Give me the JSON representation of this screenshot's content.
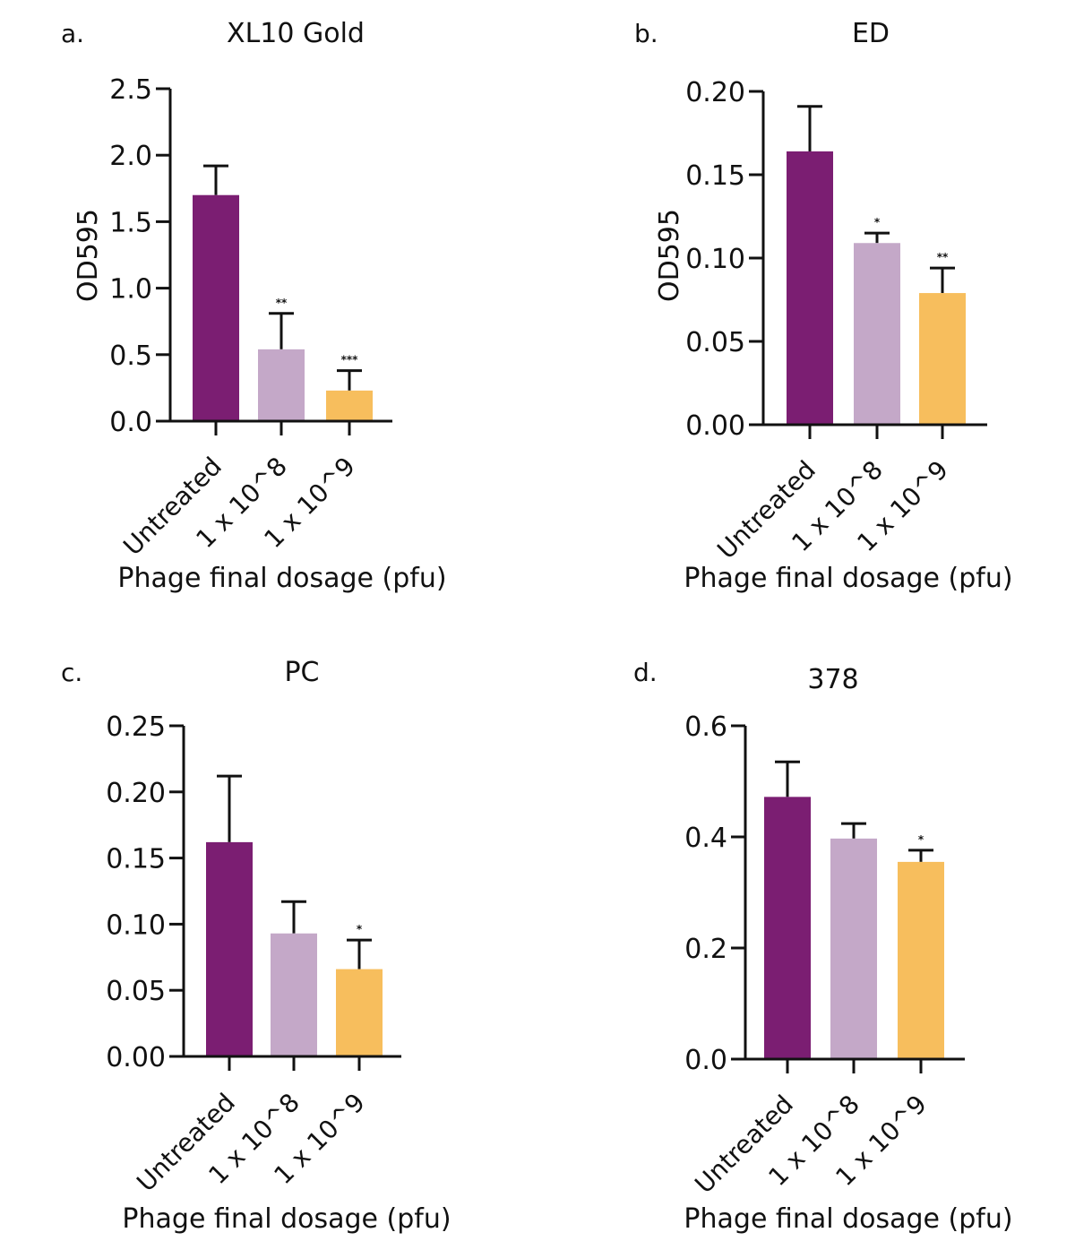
{
  "panels": [
    {
      "letter": "a.",
      "chart_data": {
        "type": "bar",
        "title": "XL10 Gold",
        "ylabel": "OD595",
        "xlabel": "Phage final dosage (pfu)",
        "categories": [
          "Untreated",
          "1 x 10^8",
          "1 x 10^9"
        ],
        "values": [
          1.7,
          0.54,
          0.23
        ],
        "errors": [
          0.22,
          0.27,
          0.15
        ],
        "significance": [
          "",
          "**",
          "***"
        ],
        "ylim": [
          0,
          2.5
        ],
        "yticks": [
          "0.0",
          "0.5",
          "1.0",
          "1.5",
          "2.0",
          "2.5"
        ],
        "colors": [
          "#7B1E72",
          "#C4A8C8",
          "#F7BE5D"
        ]
      }
    },
    {
      "letter": "b.",
      "chart_data": {
        "type": "bar",
        "title": "ED",
        "ylabel": "OD595",
        "xlabel": "Phage final dosage (pfu)",
        "categories": [
          "Untreated",
          "1 x 10^8",
          "1 x 10^9"
        ],
        "values": [
          0.164,
          0.109,
          0.079
        ],
        "errors": [
          0.027,
          0.006,
          0.015
        ],
        "significance": [
          "",
          "*",
          "**"
        ],
        "ylim": [
          0,
          0.2
        ],
        "yticks": [
          "0.00",
          "0.05",
          "0.10",
          "0.15",
          "0.20"
        ],
        "colors": [
          "#7B1E72",
          "#C4A8C8",
          "#F7BE5D"
        ]
      }
    },
    {
      "letter": "c.",
      "chart_data": {
        "type": "bar",
        "title": "PC",
        "ylabel": "",
        "xlabel": "Phage final dosage (pfu)",
        "categories": [
          "Untreated",
          "1 x 10^8",
          "1 x 10^9"
        ],
        "values": [
          0.162,
          0.093,
          0.066
        ],
        "errors": [
          0.05,
          0.024,
          0.022
        ],
        "significance": [
          "",
          "",
          "*"
        ],
        "ylim": [
          0,
          0.25
        ],
        "yticks": [
          "0.00",
          "0.05",
          "0.10",
          "0.15",
          "0.20",
          "0.25"
        ],
        "colors": [
          "#7B1E72",
          "#C4A8C8",
          "#F7BE5D"
        ]
      }
    },
    {
      "letter": "d.",
      "chart_data": {
        "type": "bar",
        "title": "378",
        "ylabel": "",
        "xlabel": "Phage final dosage (pfu)",
        "categories": [
          "Untreated",
          "1 x 10^8",
          "1 x 10^9"
        ],
        "values": [
          0.472,
          0.397,
          0.355
        ],
        "errors": [
          0.063,
          0.027,
          0.021
        ],
        "significance": [
          "",
          "",
          "*"
        ],
        "ylim": [
          0,
          0.6
        ],
        "yticks": [
          "0.0",
          "0.2",
          "0.4",
          "0.6"
        ],
        "colors": [
          "#7B1E72",
          "#C4A8C8",
          "#F7BE5D"
        ]
      }
    }
  ]
}
